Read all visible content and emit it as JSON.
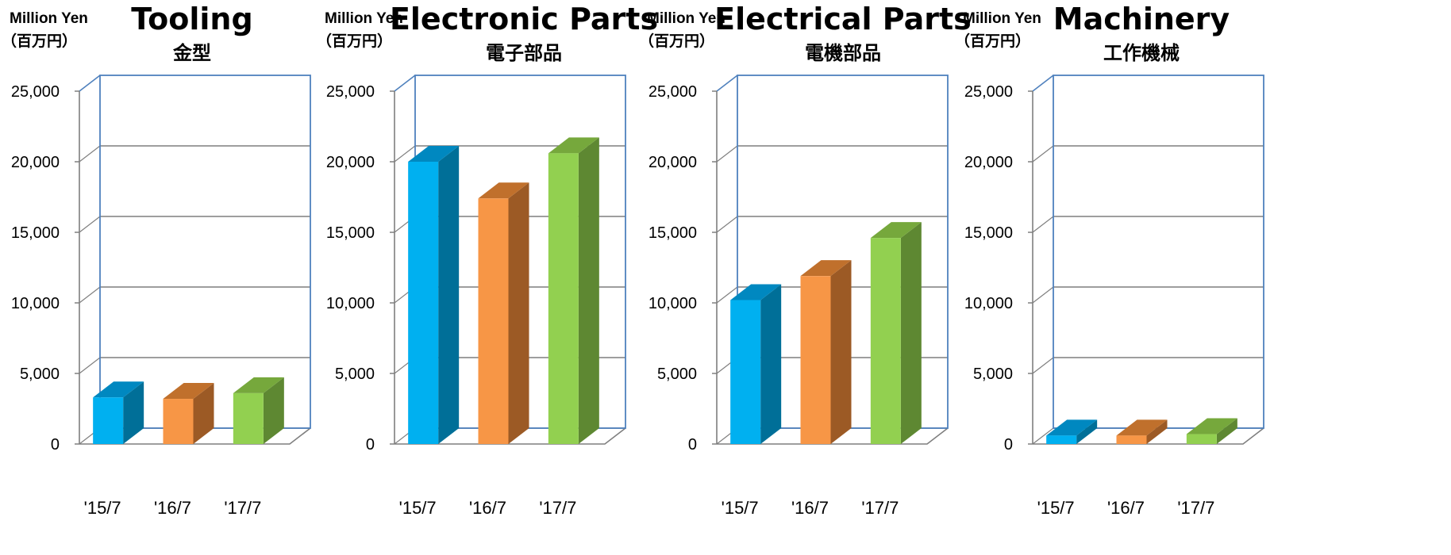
{
  "colors": {
    "series": [
      {
        "front": "#00B0F0",
        "side": "#006F98",
        "top": "#0088C0"
      },
      {
        "front": "#F79646",
        "side": "#9C5A25",
        "top": "#C0702C"
      },
      {
        "front": "#92D050",
        "side": "#5E8832",
        "top": "#76A83C"
      }
    ],
    "frame": "#4F81BD",
    "grid": "#7F7F7F"
  },
  "chart_data": [
    {
      "type": "bar",
      "title": "Tooling",
      "subtitle": "金型",
      "unit_en": "Million Yen",
      "unit_jp": "（百万円）",
      "categories": [
        "'15/7",
        "'16/7",
        "'17/7"
      ],
      "values": [
        3300,
        3200,
        3600
      ],
      "ylim": [
        0,
        25000
      ],
      "yticks": [
        "0",
        "5,000",
        "10,000",
        "15,000",
        "20,000",
        "25,000"
      ],
      "grid": true
    },
    {
      "type": "bar",
      "title": "Electronic Parts",
      "subtitle": "電子部品",
      "unit_en": "Million Yen",
      "unit_jp": "（百万円）",
      "categories": [
        "'15/7",
        "'16/7",
        "'17/7"
      ],
      "values": [
        20000,
        17400,
        20600
      ],
      "ylim": [
        0,
        25000
      ],
      "yticks": [
        "0",
        "5,000",
        "10,000",
        "15,000",
        "20,000",
        "25,000"
      ],
      "grid": true
    },
    {
      "type": "bar",
      "title": "Electrical Parts",
      "subtitle": "電機部品",
      "unit_en": "Million Yen",
      "unit_jp": "（百万円）",
      "categories": [
        "'15/7",
        "'16/7",
        "'17/7"
      ],
      "values": [
        10200,
        11900,
        14600
      ],
      "ylim": [
        0,
        25000
      ],
      "yticks": [
        "0",
        "5,000",
        "10,000",
        "15,000",
        "20,000",
        "25,000"
      ],
      "grid": true
    },
    {
      "type": "bar",
      "title": "Machinery",
      "subtitle": "工作機械",
      "unit_en": "Million Yen",
      "unit_jp": "（百万円）",
      "categories": [
        "'15/7",
        "'16/7",
        "'17/7"
      ],
      "values": [
        600,
        600,
        700
      ],
      "ylim": [
        0,
        25000
      ],
      "yticks": [
        "0",
        "5,000",
        "10,000",
        "15,000",
        "20,000",
        "25,000"
      ],
      "grid": true
    }
  ]
}
